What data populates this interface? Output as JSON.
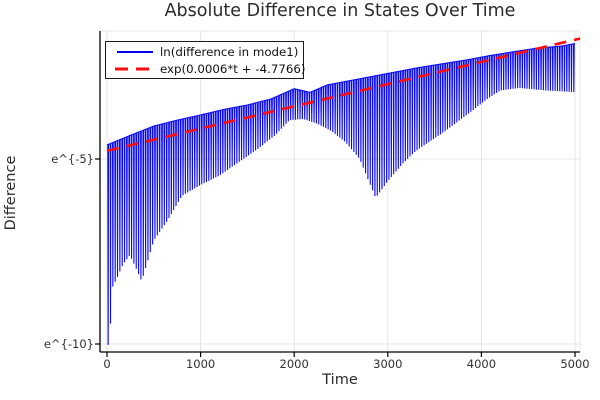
{
  "title": "Absolute Difference in States Over Time",
  "axes": {
    "xlabel": "Time",
    "ylabel": "Difference",
    "xticks": [
      {
        "label": "0",
        "value": 0
      },
      {
        "label": "1000",
        "value": 1000
      },
      {
        "label": "2000",
        "value": 2000
      },
      {
        "label": "3000",
        "value": 3000
      },
      {
        "label": "4000",
        "value": 4000
      },
      {
        "label": "5000",
        "value": 5000
      }
    ],
    "yticks": [
      {
        "label": "e^{-5}",
        "ln": -5
      },
      {
        "label": "e^{-10}",
        "ln": -10
      }
    ]
  },
  "legend": {
    "items": [
      {
        "label": "ln(difference in mode1)",
        "color": "#0000f5",
        "style": "solid"
      },
      {
        "label": "exp(0.0006*t + -4.7766)",
        "color": "#f90e0e",
        "style": "dashed"
      }
    ]
  },
  "colors": {
    "series_blue": "#0000f5",
    "fit_red": "#f90e0e",
    "grid": "#e4e4e4",
    "frame": "#e9e9e9",
    "spine": "#000000",
    "title_text": "#2b2b2b",
    "tick_text": "#303030"
  },
  "chart_data": {
    "type": "line",
    "title": "Absolute Difference in States Over Time",
    "xlabel": "Time",
    "ylabel": "Difference",
    "x_range": [
      0,
      5000
    ],
    "y_scale": "natural-log (labels shown as e^{n})",
    "y_range_ln": [
      -10.25,
      -1.48
    ],
    "grid": true,
    "legend_position": "top-left inside",
    "series": [
      {
        "name": "ln(difference in mode1)",
        "color": "#0000f5",
        "style": "solid",
        "description": "rapid oscillation (~25 time-unit period) between upper and lower envelopes; deep spikes near t=0 reaching e^-10, envelope pinch near t=2000, V-shaped dip of lower envelope centered t=2870, band narrowing again toward t=5000",
        "oscillation_period_t": 25,
        "upper_envelope_t_ln": [
          [
            0,
            -4.62
          ],
          [
            250,
            -4.36
          ],
          [
            500,
            -4.11
          ],
          [
            750,
            -3.95
          ],
          [
            1000,
            -3.81
          ],
          [
            1250,
            -3.66
          ],
          [
            1500,
            -3.54
          ],
          [
            1750,
            -3.38
          ],
          [
            2000,
            -3.1
          ],
          [
            2170,
            -3.2
          ],
          [
            2350,
            -3.0
          ],
          [
            2600,
            -2.88
          ],
          [
            2850,
            -2.76
          ],
          [
            3100,
            -2.64
          ],
          [
            3350,
            -2.52
          ],
          [
            3600,
            -2.42
          ],
          [
            3850,
            -2.32
          ],
          [
            4100,
            -2.2
          ],
          [
            4350,
            -2.1
          ],
          [
            4600,
            -2.0
          ],
          [
            4850,
            -1.95
          ],
          [
            5000,
            -1.88
          ]
        ],
        "lower_envelope_t_ln": [
          [
            0,
            -10.05
          ],
          [
            25,
            -10.0
          ],
          [
            60,
            -8.46
          ],
          [
            110,
            -8.2
          ],
          [
            170,
            -7.85
          ],
          [
            245,
            -7.6
          ],
          [
            310,
            -7.95
          ],
          [
            370,
            -8.3
          ],
          [
            430,
            -7.8
          ],
          [
            500,
            -7.2
          ],
          [
            650,
            -6.65
          ],
          [
            800,
            -6.0
          ],
          [
            1000,
            -5.7
          ],
          [
            1200,
            -5.45
          ],
          [
            1400,
            -5.1
          ],
          [
            1600,
            -4.75
          ],
          [
            1800,
            -4.35
          ],
          [
            1950,
            -3.95
          ],
          [
            2100,
            -3.92
          ],
          [
            2250,
            -4.05
          ],
          [
            2400,
            -4.25
          ],
          [
            2550,
            -4.55
          ],
          [
            2700,
            -5.0
          ],
          [
            2870,
            -6.05
          ],
          [
            3000,
            -5.6
          ],
          [
            3150,
            -5.15
          ],
          [
            3300,
            -4.78
          ],
          [
            3600,
            -4.27
          ],
          [
            3900,
            -3.7
          ],
          [
            4050,
            -3.4
          ],
          [
            4200,
            -3.15
          ],
          [
            4400,
            -3.08
          ],
          [
            4700,
            -3.15
          ],
          [
            5000,
            -3.19
          ]
        ]
      },
      {
        "name": "exp(0.0006*t + -4.7766)",
        "color": "#f90e0e",
        "style": "dashed",
        "fit": {
          "slope": 0.0006,
          "intercept": -4.7766
        },
        "endpoints_t_ln": [
          [
            0,
            -4.7766
          ],
          [
            5000,
            -1.7766
          ]
        ]
      }
    ]
  }
}
